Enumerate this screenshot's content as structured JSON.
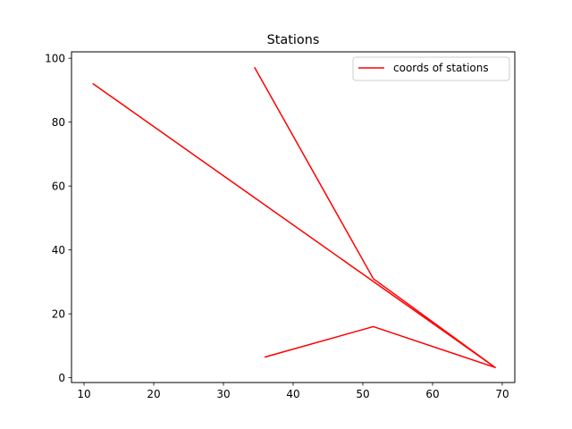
{
  "chart_data": {
    "type": "line",
    "title": "Stations",
    "xlabel": "",
    "ylabel": "",
    "xlim": [
      8.2,
      71.8
    ],
    "ylim": [
      -1.5,
      102.0
    ],
    "x_ticks": [
      10,
      20,
      30,
      40,
      50,
      60,
      70
    ],
    "y_ticks": [
      0,
      20,
      40,
      60,
      80,
      100
    ],
    "grid": false,
    "legend_position": "top-right",
    "series": [
      {
        "name": "coords of stations",
        "color": "#ff0000",
        "x": [
          36.0,
          51.5,
          69.0,
          11.3,
          69.0,
          51.5,
          34.5
        ],
        "y": [
          6.5,
          16.0,
          3.2,
          92.0,
          3.2,
          31.0,
          97.0
        ]
      }
    ]
  }
}
